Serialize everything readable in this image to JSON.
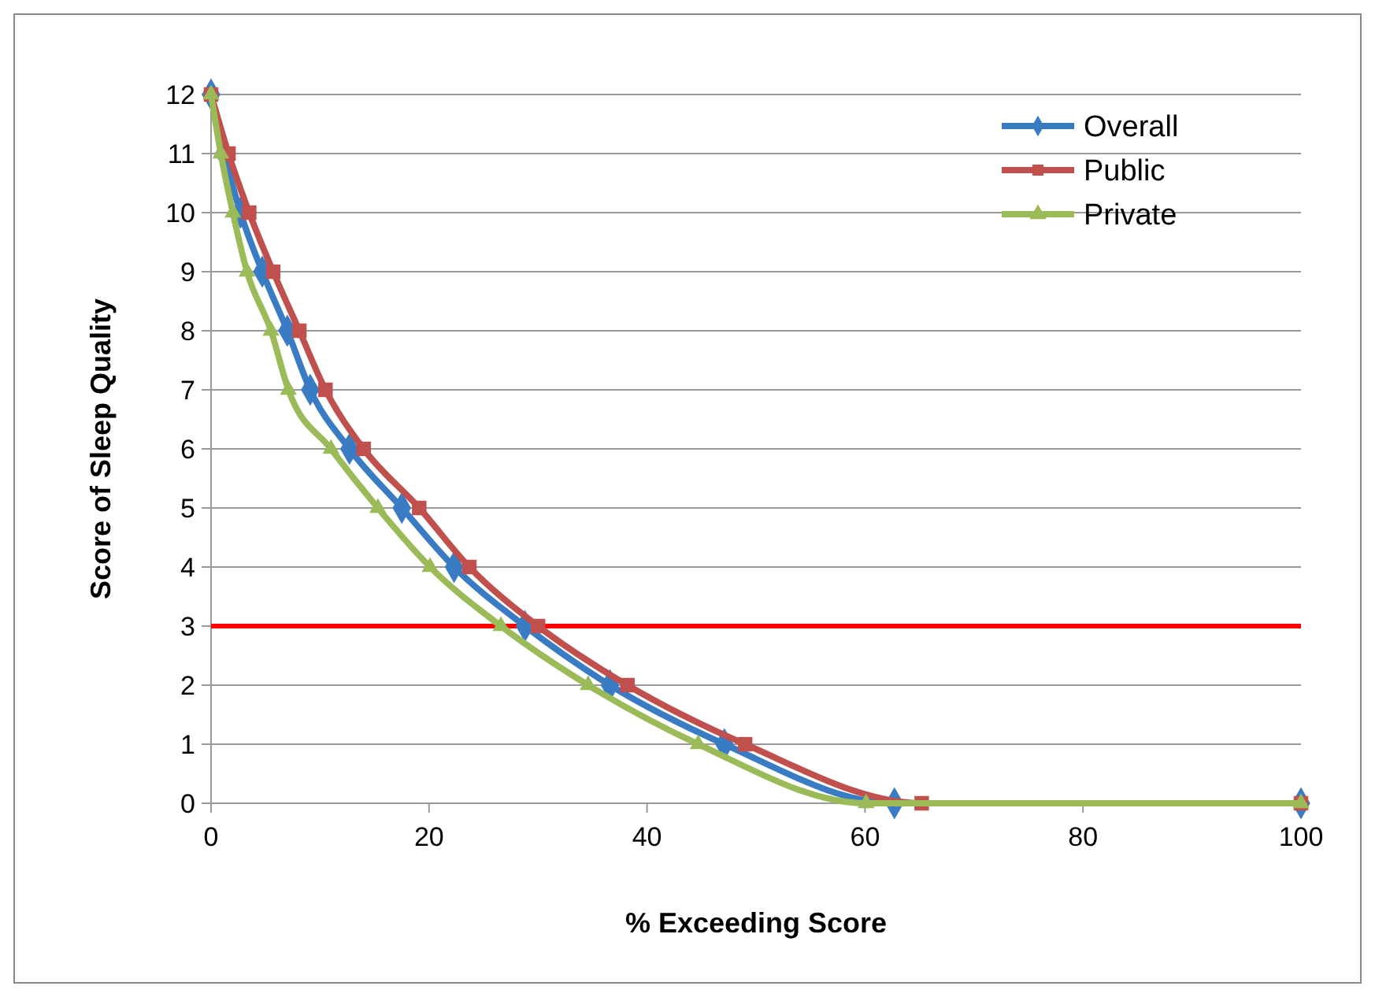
{
  "chart_data": {
    "type": "line",
    "xlabel": "% Exceeding Score",
    "ylabel": "Score of Sleep Quality",
    "xlim": [
      0,
      100
    ],
    "xticks": [
      0,
      20,
      40,
      60,
      80,
      100
    ],
    "ylim": [
      0,
      12
    ],
    "yticks": [
      0,
      1,
      2,
      3,
      4,
      5,
      6,
      7,
      8,
      9,
      10,
      11,
      12
    ],
    "grid": "y",
    "legend": "top right",
    "series": [
      {
        "name": "Overall",
        "color": "#3a7cc4",
        "marker": "diamond",
        "x": [
          0,
          1.2,
          2.7,
          4.7,
          7.0,
          9.1,
          12.7,
          17.5,
          22.3,
          28.8,
          36.6,
          47.1,
          62.7,
          100
        ],
        "values": [
          12,
          11,
          10,
          9,
          8,
          7,
          6,
          5,
          4,
          3,
          2,
          1,
          0,
          0
        ]
      },
      {
        "name": "Public",
        "color": "#c0504d",
        "marker": "square",
        "x": [
          0,
          1.6,
          3.5,
          5.7,
          8.1,
          10.5,
          14.0,
          19.1,
          23.7,
          30.0,
          38.2,
          49.0,
          65.2,
          100
        ],
        "values": [
          12,
          11,
          10,
          9,
          8,
          7,
          6,
          5,
          4,
          3,
          2,
          1,
          0,
          0
        ]
      },
      {
        "name": "Private",
        "color": "#9bbb59",
        "marker": "triangle",
        "x": [
          0,
          0.9,
          2.0,
          3.3,
          5.5,
          7.1,
          11.0,
          15.3,
          20.1,
          26.6,
          34.6,
          44.7,
          60.1,
          100
        ],
        "values": [
          12,
          11,
          10,
          9,
          8,
          7,
          6,
          5,
          4,
          3,
          2,
          1,
          0,
          0
        ]
      }
    ],
    "ref_lines": [
      {
        "axis": "y",
        "value": 3,
        "color": "#ff0000"
      }
    ]
  }
}
